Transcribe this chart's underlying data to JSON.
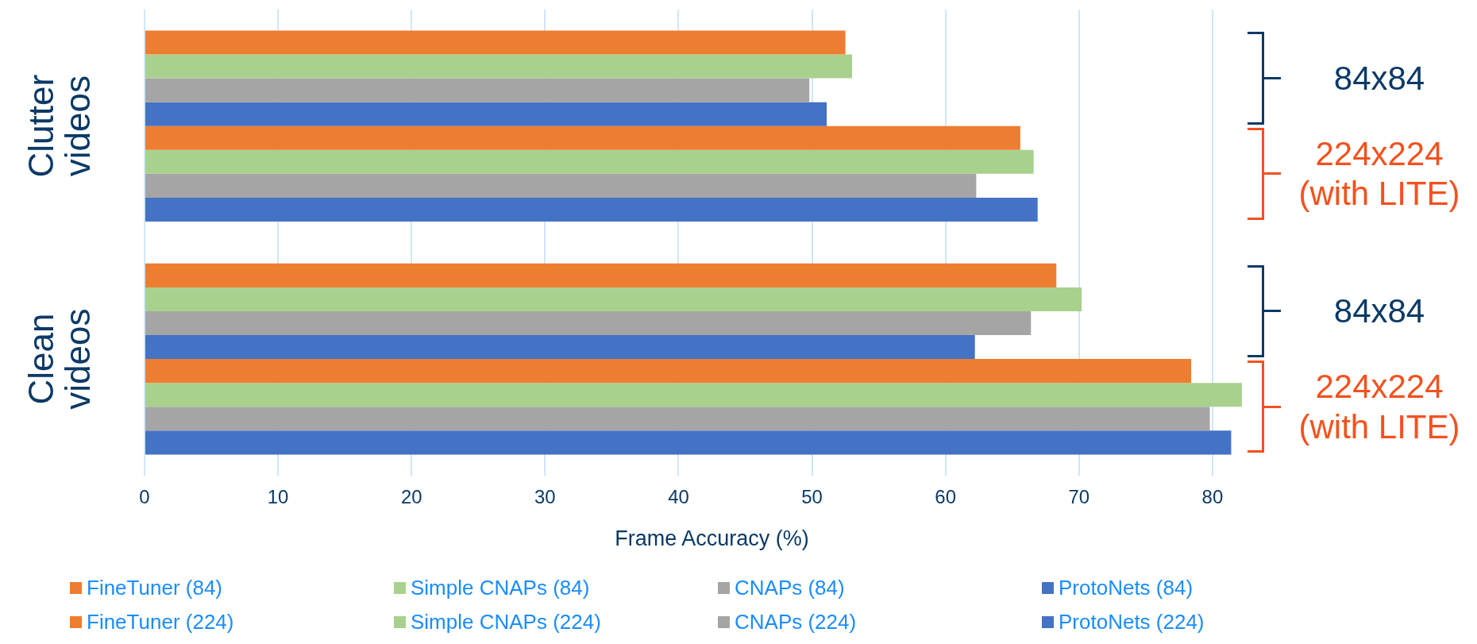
{
  "chart_data": {
    "type": "bar",
    "orientation": "horizontal",
    "categories": [
      "Clutter videos",
      "Clean videos"
    ],
    "series": [
      {
        "name": "FineTuner (84)",
        "color": "#ed7d31",
        "values": [
          52.5,
          68.3
        ]
      },
      {
        "name": "Simple CNAPs (84)",
        "color": "#a9d18e",
        "values": [
          53.0,
          70.2
        ]
      },
      {
        "name": "CNAPs (84)",
        "color": "#a5a5a5",
        "values": [
          49.8,
          66.4
        ]
      },
      {
        "name": "ProtoNets (84)",
        "color": "#4472c4",
        "values": [
          51.1,
          62.2
        ]
      },
      {
        "name": "FineTuner (224)",
        "color": "#ed7d31",
        "values": [
          65.6,
          78.4
        ]
      },
      {
        "name": "Simple CNAPs (224)",
        "color": "#a9d18e",
        "values": [
          66.6,
          82.2
        ]
      },
      {
        "name": "CNAPs (224)",
        "color": "#a5a5a5",
        "values": [
          62.3,
          79.8
        ]
      },
      {
        "name": "ProtoNets (224)",
        "color": "#4472c4",
        "values": [
          66.9,
          81.4
        ]
      }
    ],
    "xlim": [
      0,
      85
    ],
    "xticks": [
      0,
      10,
      20,
      30,
      40,
      50,
      60,
      70,
      80
    ],
    "xlabel": "Frame Accuracy (%)",
    "grid": "x",
    "legend": "bottom",
    "annotations": [
      "84x84",
      "224x224\n(with LITE)",
      "84x84",
      "224x224\n(with LITE)"
    ]
  }
}
